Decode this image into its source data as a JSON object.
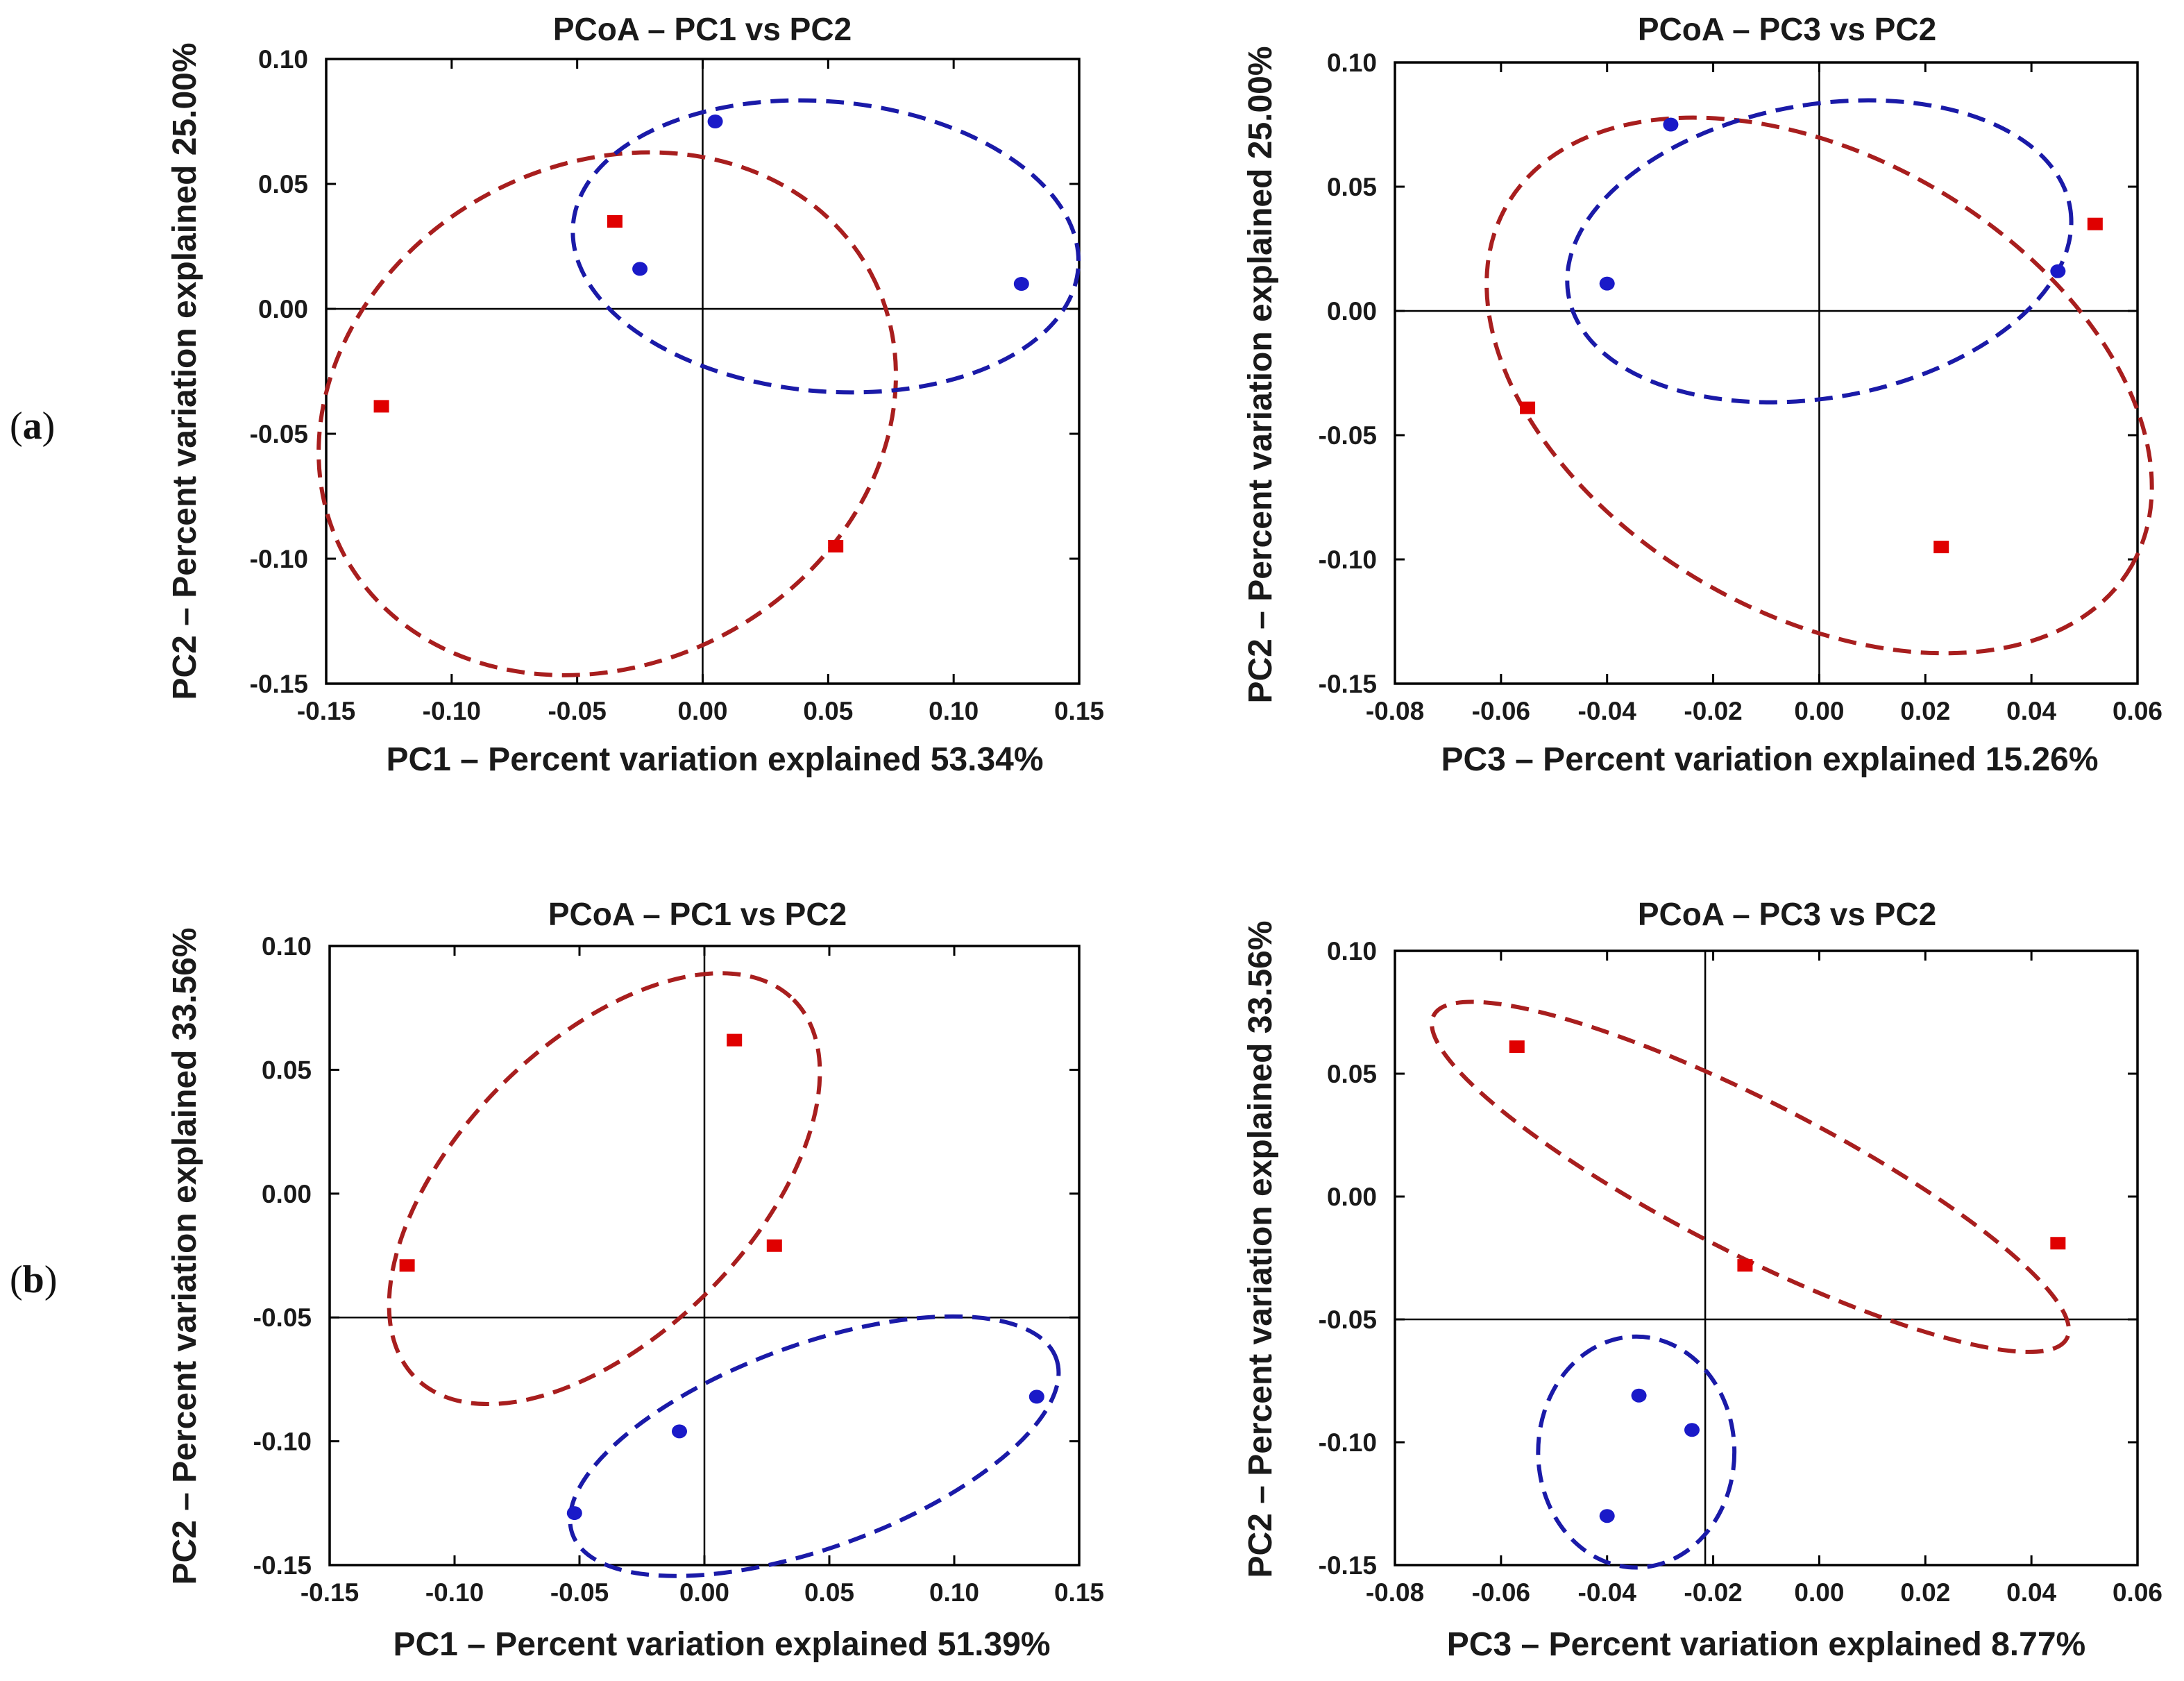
{
  "figure": {
    "panels": [
      {
        "label_open": "(",
        "label_letter": "a",
        "label_close": ")"
      },
      {
        "label_open": "(",
        "label_letter": "b",
        "label_close": ")"
      }
    ],
    "colors": {
      "group1": "#e00000",
      "group1_ellipse": "#a81e1e",
      "group2": "#1a1ac8",
      "group2_ellipse": "#1a1aa8"
    }
  },
  "chart_data": [
    {
      "type": "scatter",
      "panel": "a",
      "title": "PCoA – PC1 vs PC2",
      "xlabel": "PC1 – Percent variation explained 53.34%",
      "ylabel": "PC2 – Percent variation explained 25.00%",
      "xlim": [
        -0.15,
        0.15
      ],
      "ylim": [
        -0.15,
        0.1
      ],
      "xticks": [
        -0.15,
        -0.1,
        -0.05,
        0.0,
        0.05,
        0.1,
        0.15
      ],
      "xtick_labels": [
        "-0.15",
        "-0.10",
        "-0.05",
        "0.00",
        "0.05",
        "0.10",
        "0.15"
      ],
      "yticks": [
        0.1,
        0.05,
        0.0,
        -0.05,
        -0.1,
        -0.15
      ],
      "ytick_labels": [
        "0.10",
        "0.05",
        "0.00",
        "-0.05",
        "-0.10",
        "-0.15"
      ],
      "crosshair": {
        "x": 0.0,
        "y": 0.0
      },
      "series": [
        {
          "name": "red squares",
          "marker": "square",
          "color": "#e00000",
          "points": [
            [
              -0.035,
              0.035
            ],
            [
              -0.128,
              -0.039
            ],
            [
              0.053,
              -0.095
            ]
          ],
          "ellipse": {
            "cx": -0.038,
            "cy": -0.042,
            "rx": 0.119,
            "ry": 0.1,
            "angle_deg": -28,
            "color": "#a81e1e"
          }
        },
        {
          "name": "blue circles",
          "marker": "circle",
          "color": "#1a1ac8",
          "points": [
            [
              0.005,
              0.075
            ],
            [
              -0.025,
              0.016
            ],
            [
              0.127,
              0.01
            ]
          ],
          "ellipse": {
            "cx": 0.049,
            "cy": 0.025,
            "rx": 0.101,
            "ry": 0.058,
            "angle_deg": 5,
            "color": "#1a1aa8"
          }
        }
      ]
    },
    {
      "type": "scatter",
      "panel": "a",
      "title": "PCoA – PC3 vs PC2",
      "xlabel": "PC3 – Percent variation explained 15.26%",
      "ylabel": "PC2 – Percent variation explained 25.00%",
      "xlim": [
        -0.08,
        0.06
      ],
      "ylim": [
        -0.15,
        0.1
      ],
      "xticks": [
        -0.08,
        -0.06,
        -0.04,
        -0.02,
        0.0,
        0.02,
        0.04,
        0.06
      ],
      "xtick_labels": [
        "-0.08",
        "-0.06",
        "-0.04",
        "-0.02",
        "0.00",
        "0.02",
        "0.04",
        "0.06"
      ],
      "yticks": [
        0.1,
        0.05,
        0.0,
        -0.05,
        -0.1,
        -0.15
      ],
      "ytick_labels": [
        "0.10",
        "0.05",
        "0.00",
        "-0.05",
        "-0.10",
        "-0.15"
      ],
      "crosshair": {
        "x": 0.0,
        "y": 0.0
      },
      "series": [
        {
          "name": "red squares",
          "marker": "square",
          "color": "#e00000",
          "points": [
            [
              0.052,
              0.035
            ],
            [
              -0.055,
              -0.039
            ],
            [
              0.023,
              -0.095
            ]
          ],
          "ellipse": {
            "cx": 0.0,
            "cy": -0.03,
            "rx": 0.068,
            "ry": 0.092,
            "angle_deg": 30,
            "color": "#a81e1e"
          }
        },
        {
          "name": "blue circles",
          "marker": "circle",
          "color": "#1a1ac8",
          "points": [
            [
              -0.028,
              0.075
            ],
            [
              -0.04,
              0.011
            ],
            [
              0.045,
              0.016
            ]
          ],
          "ellipse": {
            "cx": 0.0,
            "cy": 0.024,
            "rx": 0.048,
            "ry": 0.059,
            "angle_deg": -10,
            "color": "#1a1aa8"
          }
        }
      ]
    },
    {
      "type": "scatter",
      "panel": "b",
      "title": "PCoA – PC1 vs PC2",
      "xlabel": "PC1 – Percent variation explained 51.39%",
      "ylabel": "PC2 – Percent variation explained 33.56%",
      "xlim": [
        -0.15,
        0.15
      ],
      "ylim": [
        -0.15,
        0.1
      ],
      "xticks": [
        -0.15,
        -0.1,
        -0.05,
        0.0,
        0.05,
        0.1,
        0.15
      ],
      "xtick_labels": [
        "-0.15",
        "-0.10",
        "-0.05",
        "0.00",
        "0.05",
        "0.10",
        "0.15"
      ],
      "yticks": [
        0.1,
        0.05,
        0.0,
        -0.05,
        -0.1,
        -0.15
      ],
      "ytick_labels": [
        "0.10",
        "0.05",
        "0.00",
        "-0.05",
        "-0.10",
        "-0.15"
      ],
      "crosshair": {
        "x": 0.0,
        "y": -0.05
      },
      "series": [
        {
          "name": "red squares",
          "marker": "square",
          "color": "#e00000",
          "points": [
            [
              0.012,
              0.062
            ],
            [
              -0.119,
              -0.029
            ],
            [
              0.028,
              -0.021
            ]
          ],
          "ellipse": {
            "cx": -0.04,
            "cy": 0.002,
            "rx": 0.107,
            "ry": 0.059,
            "angle_deg": -45,
            "color": "#a81e1e"
          }
        },
        {
          "name": "blue circles",
          "marker": "circle",
          "color": "#1a1ac8",
          "points": [
            [
              -0.01,
              -0.096
            ],
            [
              -0.052,
              -0.129
            ],
            [
              0.133,
              -0.082
            ]
          ],
          "ellipse": {
            "cx": 0.044,
            "cy": -0.102,
            "rx": 0.103,
            "ry": 0.041,
            "angle_deg": -20,
            "color": "#1a1aa8"
          }
        }
      ]
    },
    {
      "type": "scatter",
      "panel": "b",
      "title": "PCoA – PC3 vs PC2",
      "xlabel": "PC3 – Percent variation explained 8.77%",
      "ylabel": "PC2 – Percent variation explained 33.56%",
      "xlim": [
        -0.08,
        0.06
      ],
      "ylim": [
        -0.15,
        0.1
      ],
      "xticks": [
        -0.08,
        -0.06,
        -0.04,
        -0.02,
        0.0,
        0.02,
        0.04,
        0.06
      ],
      "xtick_labels": [
        "-0.08",
        "-0.06",
        "-0.04",
        "-0.02",
        "0.00",
        "0.02",
        "0.04",
        "0.06"
      ],
      "yticks": [
        0.1,
        0.05,
        0.0,
        -0.05,
        -0.1,
        -0.15
      ],
      "ytick_labels": [
        "0.10",
        "0.05",
        "0.00",
        "-0.05",
        "-0.10",
        "-0.15"
      ],
      "crosshair": {
        "x": -0.0215,
        "y": -0.05
      },
      "series": [
        {
          "name": "red squares",
          "marker": "square",
          "color": "#e00000",
          "points": [
            [
              -0.057,
              0.061
            ],
            [
              -0.014,
              -0.028
            ],
            [
              0.045,
              -0.019
            ]
          ],
          "ellipse": {
            "cx": -0.013,
            "cy": 0.008,
            "rx": 0.067,
            "ry": 0.031,
            "angle_deg": 27,
            "color": "#a81e1e"
          }
        },
        {
          "name": "blue circles",
          "marker": "circle",
          "color": "#1a1ac8",
          "points": [
            [
              -0.034,
              -0.081
            ],
            [
              -0.024,
              -0.095
            ],
            [
              -0.04,
              -0.13
            ]
          ],
          "ellipse": {
            "cx": -0.0345,
            "cy": -0.104,
            "rx": 0.0185,
            "ry": 0.047,
            "angle_deg": 0,
            "color": "#1a1aa8"
          }
        }
      ]
    }
  ]
}
